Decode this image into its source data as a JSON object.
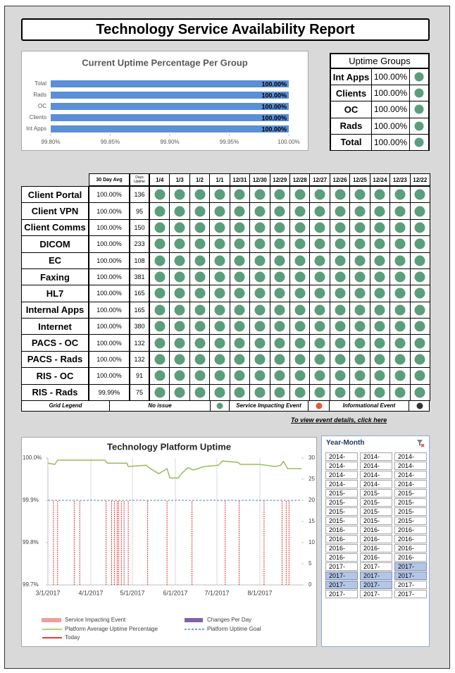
{
  "title": "Technology Service Availability Report",
  "chart_data": [
    {
      "type": "bar",
      "orientation": "horizontal",
      "title": "Current Uptime Percentage Per Group",
      "categories": [
        "Total",
        "Rads",
        "OC",
        "Clients",
        "Int Apps"
      ],
      "values": [
        100,
        100,
        100,
        100,
        100
      ],
      "value_labels": [
        "100.00%",
        "100.00%",
        "100.00%",
        "100.00%",
        "100.00%"
      ],
      "color": "#5b8fd6",
      "xlim": [
        99.8,
        100
      ],
      "xticks": [
        {
          "value": 99.8,
          "label": "99.80%"
        },
        {
          "value": 99.85,
          "label": "99.85%"
        },
        {
          "value": 99.9,
          "label": "99.90%"
        },
        {
          "value": 99.95,
          "label": "99.95%"
        },
        {
          "value": 100,
          "label": "100.00%"
        }
      ]
    },
    {
      "type": "line",
      "title": "Technology Platform Uptime",
      "xlim": [
        "3/1/2017",
        "8/31/2017"
      ],
      "xticks": [
        "3/1/2017",
        "4/1/2017",
        "5/1/2017",
        "6/1/2017",
        "7/1/2017",
        "8/1/2017"
      ],
      "ylim": [
        99.7,
        100.0
      ],
      "yticks": [
        {
          "value": 99.7,
          "label": "99.7%"
        },
        {
          "value": 99.8,
          "label": "99.8%"
        },
        {
          "value": 99.9,
          "label": "99.9%"
        },
        {
          "value": 100.0,
          "label": "100.0%"
        }
      ],
      "y2lim": [
        0,
        30
      ],
      "y2ticks": [
        0,
        5,
        10,
        15,
        20,
        25,
        30
      ],
      "series": [
        {
          "name": "Service Impacting Event",
          "color": "#e03c3c",
          "style": "event",
          "axis": "y2",
          "x": [
            "3/5/2017",
            "3/8/2017",
            "3/20/2017",
            "3/24/2017",
            "4/12/2017",
            "4/16/2017",
            "4/18/2017",
            "4/20/2017",
            "4/21/2017",
            "4/23/2017",
            "4/25/2017",
            "4/28/2017",
            "5/12/2017",
            "5/26/2017",
            "6/13/2017",
            "7/7/2017",
            "7/17/2017",
            "8/4/2017",
            "8/17/2017",
            "8/20/2017",
            "8/22/2017"
          ],
          "values": [
            20,
            20,
            20,
            20,
            20,
            20,
            20,
            20,
            20,
            20,
            20,
            20,
            20,
            20,
            20,
            20,
            20,
            20,
            20,
            20,
            20
          ]
        },
        {
          "name": "Changes Per Day",
          "color": "#8064a2",
          "style": "bar",
          "axis": "y2",
          "x": [],
          "values": []
        },
        {
          "name": "Platform Average Uptime Percentage",
          "color": "#9bbb59",
          "style": "line",
          "x": [
            "3/1/2017",
            "3/6/2017",
            "3/8/2017",
            "4/11/2017",
            "4/13/2017",
            "4/27/2017",
            "4/28/2017",
            "5/11/2017",
            "5/13/2017",
            "5/20/2017",
            "5/26/2017",
            "5/28/2017",
            "6/3/2017",
            "6/6/2017",
            "6/10/2017",
            "6/14/2017",
            "6/22/2017",
            "7/2/2017",
            "7/5/2017",
            "7/16/2017",
            "7/18/2017",
            "8/1/2017",
            "8/12/2017",
            "8/16/2017",
            "8/18/2017",
            "8/21/2017",
            "8/31/2017"
          ],
          "values": [
            99.988,
            99.985,
            99.995,
            99.995,
            99.988,
            99.988,
            99.98,
            99.983,
            99.977,
            99.963,
            99.975,
            99.953,
            99.953,
            99.965,
            99.977,
            99.972,
            99.98,
            99.983,
            99.993,
            99.99,
            99.985,
            99.985,
            99.98,
            99.983,
            99.992,
            99.975,
            99.975
          ]
        },
        {
          "name": "Platform Uptime Goal",
          "color": "#4f81bd",
          "style": "dashed",
          "x": [
            "3/1/2017",
            "8/31/2017"
          ],
          "values": [
            99.9,
            99.9
          ]
        },
        {
          "name": "Today",
          "color": "#e03c3c",
          "style": "today",
          "x": [],
          "values": []
        }
      ]
    }
  ],
  "uptime_groups": {
    "title": "Uptime Groups",
    "rows": [
      [
        "Int Apps",
        "100.00%"
      ],
      [
        "Clients",
        "100.00%"
      ],
      [
        "OC",
        "100.00%"
      ],
      [
        "Rads",
        "100.00%"
      ],
      [
        "Total",
        "100.00%"
      ]
    ]
  },
  "service_grid": {
    "avg_header": "30 Day Avg",
    "days_header": "Days Uptime",
    "dates": [
      "1/4",
      "1/3",
      "1/2",
      "1/1",
      "12/31",
      "12/30",
      "12/29",
      "12/28",
      "12/27",
      "12/26",
      "12/25",
      "12/24",
      "12/23",
      "12/22"
    ],
    "rows": [
      {
        "name": "Client Portal",
        "avg": "100.00%",
        "days": 136
      },
      {
        "name": "Client VPN",
        "avg": "100.00%",
        "days": 95
      },
      {
        "name": "Client Comms",
        "avg": "100.00%",
        "days": 150
      },
      {
        "name": "DICOM",
        "avg": "100.00%",
        "days": 233
      },
      {
        "name": "EC",
        "avg": "100.00%",
        "days": 108
      },
      {
        "name": "Faxing",
        "avg": "100.00%",
        "days": 381
      },
      {
        "name": "HL7",
        "avg": "100.00%",
        "days": 165
      },
      {
        "name": "Internal Apps",
        "avg": "100.00%",
        "days": 165
      },
      {
        "name": "Internet",
        "avg": "100.00%",
        "days": 380
      },
      {
        "name": "PACS - OC",
        "avg": "100.00%",
        "days": 132
      },
      {
        "name": "PACS - Rads",
        "avg": "100.00%",
        "days": 132
      },
      {
        "name": "RIS - OC",
        "avg": "100.00%",
        "days": 91
      },
      {
        "name": "RIS - Rads",
        "avg": "99.99%",
        "days": 75
      }
    ]
  },
  "grid_legend": {
    "title": "Grid Legend",
    "items": [
      {
        "label": "No issue",
        "color": "#5a9e7e"
      },
      {
        "label": "Service Impacting Event",
        "color": "#e8573c"
      },
      {
        "label": "Informational Event",
        "color": "#333333"
      }
    ]
  },
  "link": "To view event details, click here",
  "slicer": {
    "title": "Year-Month",
    "items": [
      {
        "label": "2014-",
        "selected": false
      },
      {
        "label": "2014-",
        "selected": false
      },
      {
        "label": "2014-",
        "selected": false
      },
      {
        "label": "2014-",
        "selected": false
      },
      {
        "label": "2014-",
        "selected": false
      },
      {
        "label": "2014-",
        "selected": false
      },
      {
        "label": "2014-",
        "selected": false
      },
      {
        "label": "2014-",
        "selected": false
      },
      {
        "label": "2014-",
        "selected": false
      },
      {
        "label": "2014-",
        "selected": false
      },
      {
        "label": "2014-",
        "selected": false
      },
      {
        "label": "2014-",
        "selected": false
      },
      {
        "label": "2015-",
        "selected": false
      },
      {
        "label": "2015-",
        "selected": false
      },
      {
        "label": "2015-",
        "selected": false
      },
      {
        "label": "2015-",
        "selected": false
      },
      {
        "label": "2015-",
        "selected": false
      },
      {
        "label": "2015-",
        "selected": false
      },
      {
        "label": "2015-",
        "selected": false
      },
      {
        "label": "2015-",
        "selected": false
      },
      {
        "label": "2015-",
        "selected": false
      },
      {
        "label": "2015-",
        "selected": false
      },
      {
        "label": "2015-",
        "selected": false
      },
      {
        "label": "2015-",
        "selected": false
      },
      {
        "label": "2016-",
        "selected": false
      },
      {
        "label": "2016-",
        "selected": false
      },
      {
        "label": "2016-",
        "selected": false
      },
      {
        "label": "2016-",
        "selected": false
      },
      {
        "label": "2016-",
        "selected": false
      },
      {
        "label": "2016-",
        "selected": false
      },
      {
        "label": "2016-",
        "selected": false
      },
      {
        "label": "2016-",
        "selected": false
      },
      {
        "label": "2016-",
        "selected": false
      },
      {
        "label": "2016-",
        "selected": false
      },
      {
        "label": "2016-",
        "selected": false
      },
      {
        "label": "2016-",
        "selected": false
      },
      {
        "label": "2017-",
        "selected": false
      },
      {
        "label": "2017-",
        "selected": false
      },
      {
        "label": "2017-",
        "selected": true
      },
      {
        "label": "2017-",
        "selected": true
      },
      {
        "label": "2017-",
        "selected": true
      },
      {
        "label": "2017-",
        "selected": true
      },
      {
        "label": "2017-",
        "selected": true
      },
      {
        "label": "2017-",
        "selected": true
      },
      {
        "label": "2017-",
        "selected": false
      },
      {
        "label": "2017-",
        "selected": false
      },
      {
        "label": "2017-",
        "selected": false
      },
      {
        "label": "2017-",
        "selected": false
      }
    ]
  }
}
